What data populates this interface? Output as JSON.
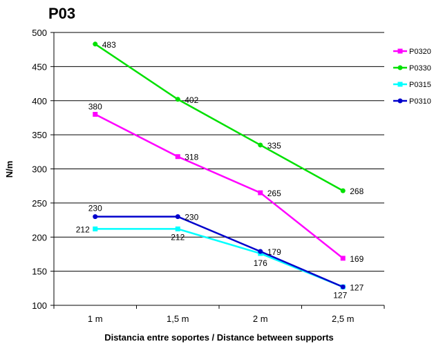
{
  "chart_data": {
    "type": "line",
    "title": "P03",
    "xlabel": "Distancia entre soportes / Distance between supports",
    "ylabel": "N/m",
    "categories": [
      "1 m",
      "1,5 m",
      "2 m",
      "2,5 m"
    ],
    "ylim": [
      100,
      500
    ],
    "yticks": [
      100,
      150,
      200,
      250,
      300,
      350,
      400,
      450,
      500
    ],
    "grid": "horizontal",
    "legend_position": "right",
    "series": [
      {
        "name": "P0320",
        "color": "#ff00ff",
        "marker": "square",
        "values": [
          380,
          318,
          265,
          169
        ]
      },
      {
        "name": "P0330",
        "color": "#00e000",
        "marker": "circle",
        "values": [
          483,
          402,
          335,
          268
        ]
      },
      {
        "name": "P0315",
        "color": "#00ffff",
        "marker": "square",
        "values": [
          212,
          212,
          176,
          127
        ]
      },
      {
        "name": "P0310",
        "color": "#0000cc",
        "marker": "circle",
        "values": [
          230,
          230,
          179,
          127
        ]
      }
    ]
  }
}
